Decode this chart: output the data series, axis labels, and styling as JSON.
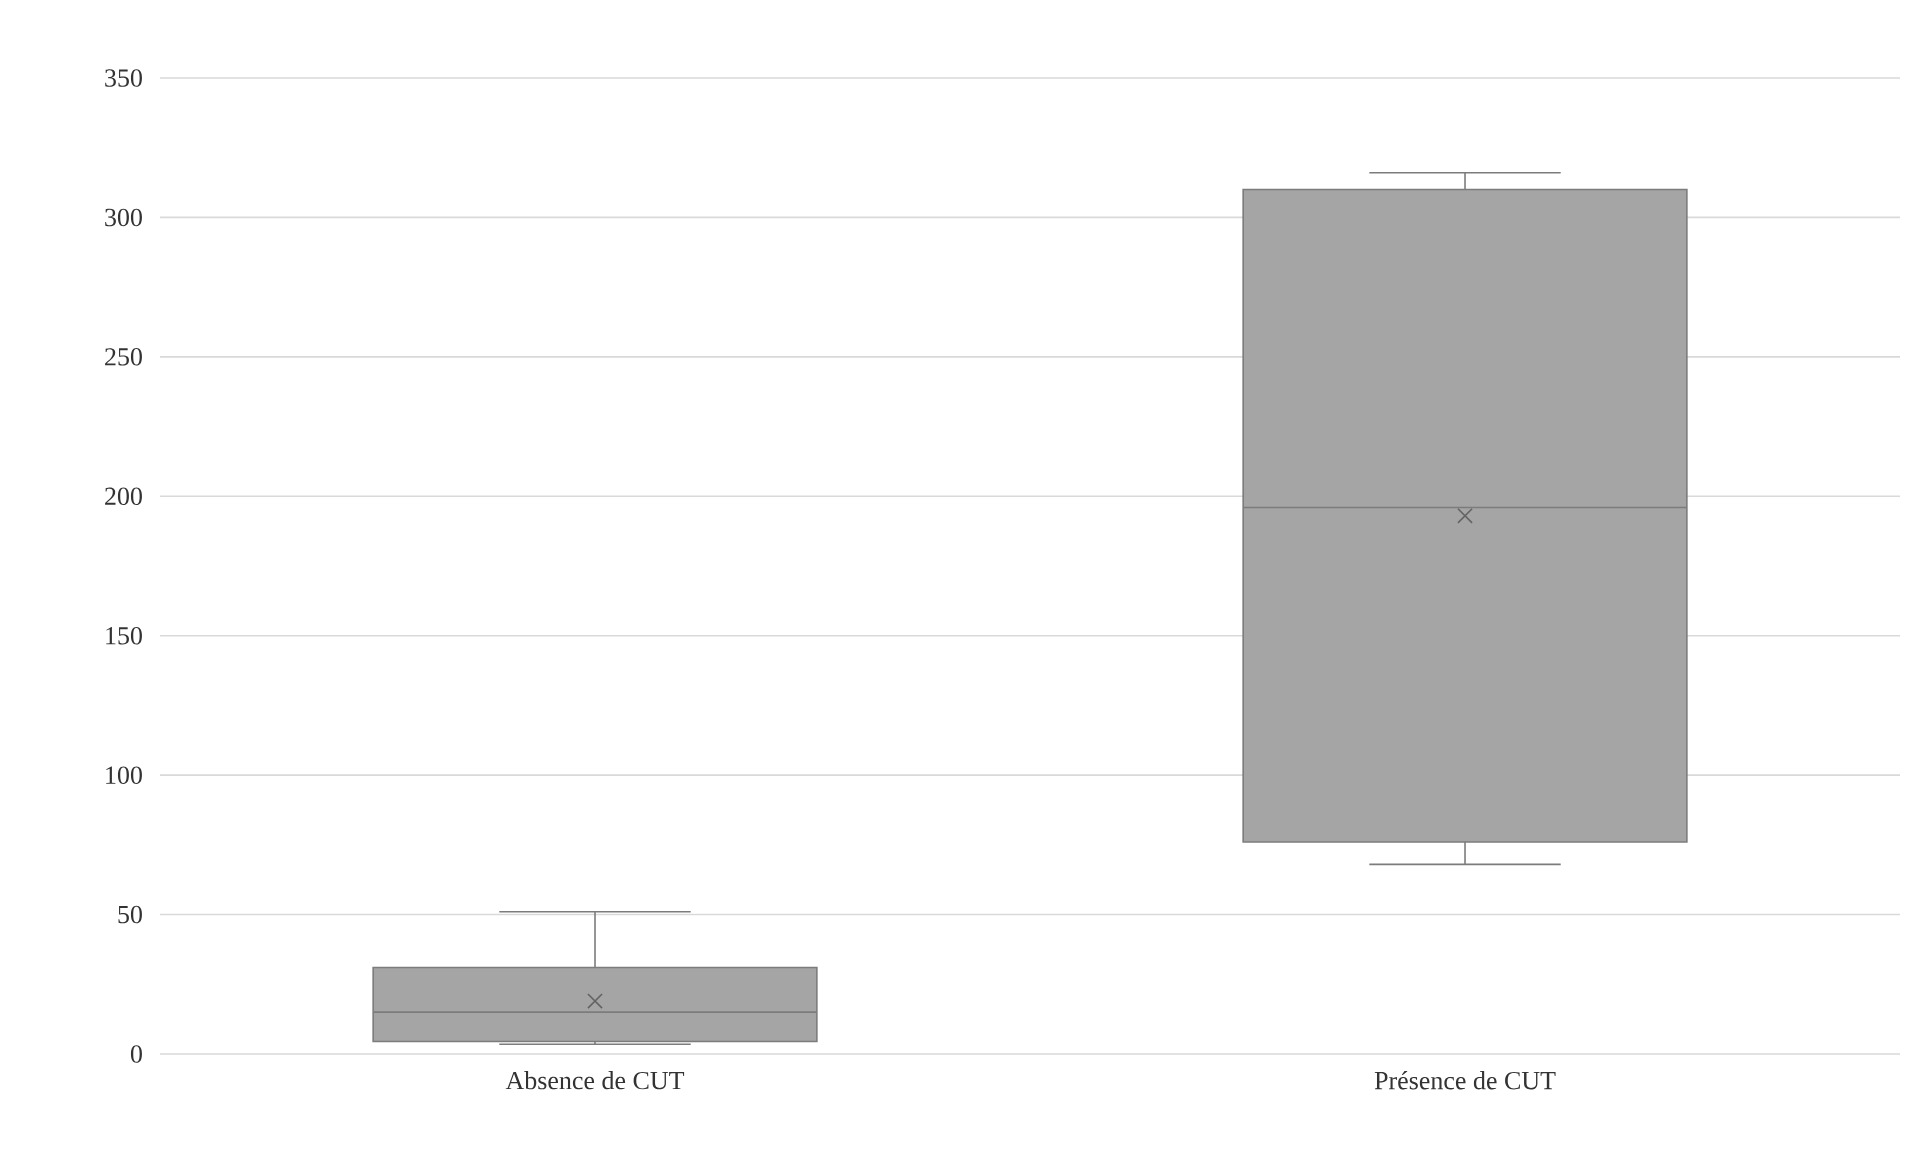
{
  "chart_data": {
    "type": "box",
    "categories": [
      "Absence de CUT",
      "Présence de CUT"
    ],
    "series": [
      {
        "color": "#a5a5a5",
        "boxes": [
          {
            "low": 3.5,
            "q1": 4.5,
            "median": 15,
            "q3": 31,
            "high": 51,
            "mean": 19
          },
          {
            "low": 68,
            "q1": 76,
            "median": 196,
            "q3": 310,
            "high": 316,
            "mean": 193
          }
        ]
      }
    ],
    "ylim": [
      0,
      350
    ],
    "yticks": [
      0,
      50,
      100,
      150,
      200,
      250,
      300,
      350
    ],
    "grid": "y",
    "marker": "cross"
  }
}
